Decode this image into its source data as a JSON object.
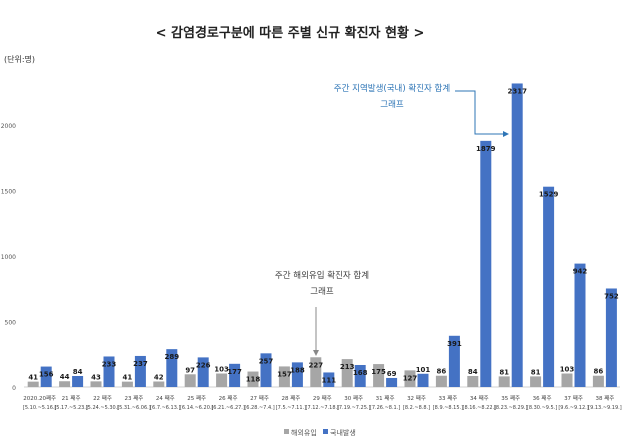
{
  "chart_data": {
    "type": "bar",
    "title": "< 감염경로구분에 따른 주별 신규 확진자 현황 >",
    "unit": "(단위:명)",
    "categories": [
      "2020.20째주",
      "21 째주",
      "22 째주",
      "23 째주",
      "24 째주",
      "25 째주",
      "26 째주",
      "27 째주",
      "28 째주",
      "29 째주",
      "30 째주",
      "31 째주",
      "32 째주",
      "33 째주",
      "34 째주",
      "35 째주",
      "36 째주",
      "37 째주",
      "38 째주"
    ],
    "subcategories": [
      "[5.10.~5.16.]",
      "[5.17.~5.23.]",
      "[5.24.~5.30.]",
      "[5.31.~6.06.]",
      "[6.7.~6.13.]",
      "[6.14.~6.20.]",
      "[6.21.~6.27.]",
      "[6.28.~7.4.]",
      "[7.5.~7.11.]",
      "[7.12.~7.18.]",
      "[7.19.~7.25.]",
      "[7.26.~8.1.]",
      "[8.2.~8.8.]",
      "[8.9.~8.15.]",
      "[8.16.~8.22.]",
      "[8.23.~8.29.]",
      "[8.30.~9.5.]",
      "[9.6.~9.12.]",
      "[9.13.~9.19.]"
    ],
    "series": [
      {
        "name": "해외유입",
        "color": "#a6a6a6",
        "values": [
          41,
          44,
          43,
          41,
          42,
          97,
          103,
          118,
          157,
          227,
          213,
          175,
          127,
          86,
          84,
          81,
          81,
          103,
          86
        ]
      },
      {
        "name": "국내발생",
        "color": "#4472c4",
        "values": [
          156,
          84,
          233,
          237,
          289,
          226,
          177,
          257,
          188,
          111,
          168,
          69,
          101,
          391,
          1879,
          2317,
          1529,
          942,
          752
        ]
      }
    ],
    "yticks": [
      0,
      500,
      1000,
      1500,
      2000
    ],
    "ylim": [
      0,
      2400
    ],
    "grid": false,
    "legend": "bottom",
    "annotations": [
      {
        "lines": [
          "주간 지역발생(국내) 확진자 합계",
          "그래프"
        ],
        "color": "#2e75b6"
      },
      {
        "lines": [
          "주간 해외유입 확진자 합계",
          "그래프"
        ],
        "color": "#404040"
      }
    ]
  }
}
